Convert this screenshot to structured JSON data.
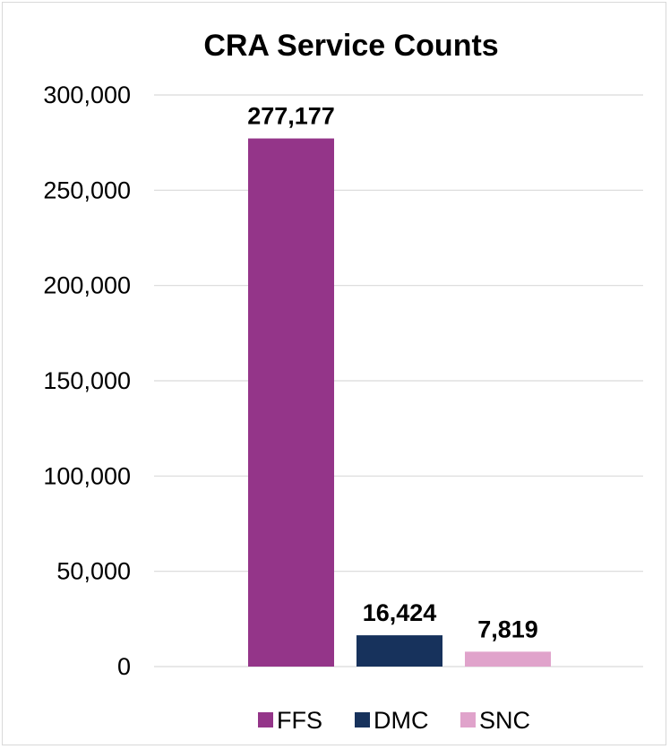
{
  "chart_data": {
    "type": "bar",
    "title": "CRA Service Counts",
    "xlabel": "",
    "ylabel": "",
    "ylim": [
      0,
      300000
    ],
    "yticks": [
      "0",
      "50,000",
      "100,000",
      "150,000",
      "200,000",
      "250,000",
      "300,000"
    ],
    "ytick_values": [
      0,
      50000,
      100000,
      150000,
      200000,
      250000,
      300000
    ],
    "grid": true,
    "legend_position": "bottom",
    "series": [
      {
        "name": "FFS",
        "values": [
          277177
        ],
        "label": "277,177",
        "color": "#943589"
      },
      {
        "name": "DMC",
        "values": [
          16424
        ],
        "label": "16,424",
        "color": "#17325c"
      },
      {
        "name": "SNC",
        "values": [
          7819
        ],
        "label": "7,819",
        "color": "#e0a3cb"
      }
    ]
  }
}
